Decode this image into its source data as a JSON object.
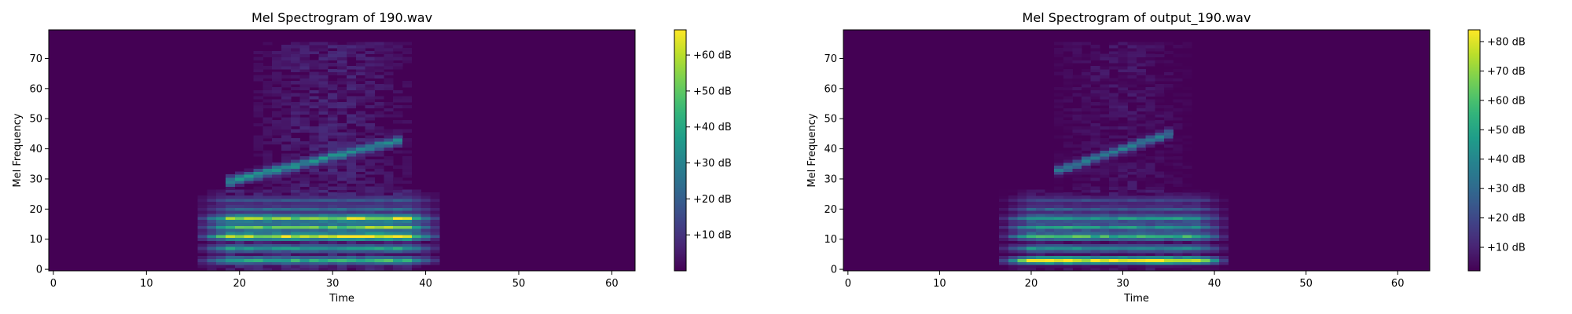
{
  "chart_data": [
    {
      "type": "heatmap",
      "title": "Mel Spectrogram of 190.wav",
      "xlabel": "Time",
      "ylabel": "Mel Frequency",
      "xlim": [
        -0.5,
        62.5
      ],
      "ylim": [
        -0.5,
        79.5
      ],
      "xticks": [
        0,
        10,
        20,
        30,
        40,
        50,
        60
      ],
      "yticks": [
        0,
        10,
        20,
        30,
        40,
        50,
        60,
        70
      ],
      "colormap": "viridis",
      "colorbar": {
        "vmin": 0,
        "vmax": 67,
        "ticks": [
          10,
          20,
          30,
          40,
          50,
          60
        ],
        "tick_labels": [
          "+10 dB",
          "+20 dB",
          "+30 dB",
          "+40 dB",
          "+50 dB",
          "+60 dB"
        ]
      },
      "energy": {
        "t_start": 16,
        "t_end": 42,
        "low_band_end": 38,
        "peak_time": 35
      },
      "harmonics": [
        {
          "mel": 3,
          "value": 40
        },
        {
          "mel": 7,
          "value": 35
        },
        {
          "mel": 11,
          "value": 60
        },
        {
          "mel": 14,
          "value": 50
        },
        {
          "mel": 17,
          "value": 55
        },
        {
          "mel": 20,
          "value": 22
        },
        {
          "mel": 23,
          "value": 18
        }
      ],
      "formant": {
        "t0": 20,
        "mel0": 30,
        "t1": 36,
        "mel1": 42,
        "value": 35
      }
    },
    {
      "type": "heatmap",
      "title": "Mel Spectrogram of output_190.wav",
      "xlabel": "Time",
      "ylabel": "Mel Frequency",
      "xlim": [
        -0.5,
        63.5
      ],
      "ylim": [
        -0.5,
        79.5
      ],
      "xticks": [
        0,
        10,
        20,
        30,
        40,
        50,
        60
      ],
      "yticks": [
        0,
        10,
        20,
        30,
        40,
        50,
        60,
        70
      ],
      "colormap": "viridis",
      "colorbar": {
        "vmin": 2,
        "vmax": 84,
        "ticks": [
          10,
          20,
          30,
          40,
          50,
          60,
          70,
          80
        ],
        "tick_labels": [
          "+10 dB",
          "+20 dB",
          "+30 dB",
          "+40 dB",
          "+50 dB",
          "+60 dB",
          "+70 dB",
          "+80 dB"
        ]
      },
      "energy": {
        "t_start": 17,
        "t_end": 41,
        "low_band_end": 38,
        "peak_time": 22
      },
      "harmonics": [
        {
          "mel": 3,
          "value": 80
        },
        {
          "mel": 7,
          "value": 40
        },
        {
          "mel": 11,
          "value": 55
        },
        {
          "mel": 14,
          "value": 45
        },
        {
          "mel": 17,
          "value": 45
        },
        {
          "mel": 20,
          "value": 25
        },
        {
          "mel": 23,
          "value": 20
        }
      ],
      "formant": {
        "t0": 24,
        "mel0": 34,
        "t1": 34,
        "mel1": 44,
        "value": 40
      }
    }
  ]
}
